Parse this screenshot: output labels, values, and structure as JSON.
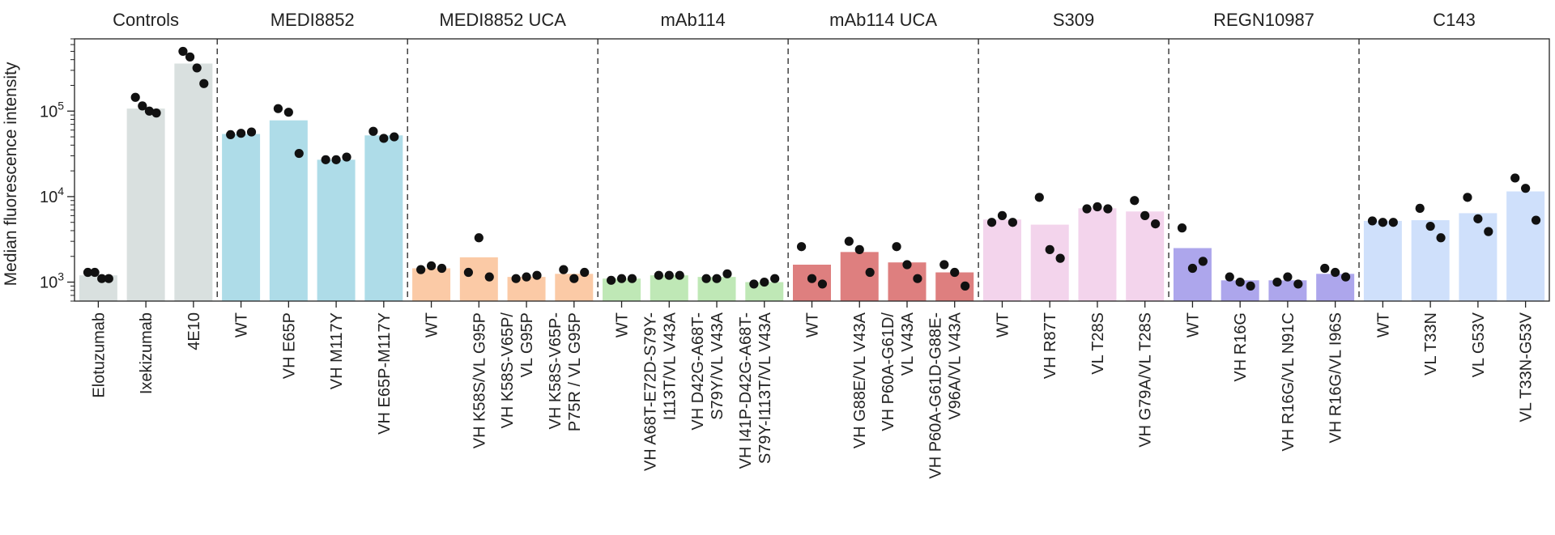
{
  "chart_data": {
    "type": "bar",
    "ylabel": "Median fluorescence intensity",
    "yscale": "log",
    "ylim": [
      600,
      700000
    ],
    "yticks": [
      {
        "value": 1000,
        "base": "10",
        "exp": "3"
      },
      {
        "value": 10000,
        "base": "10",
        "exp": "4"
      },
      {
        "value": 100000,
        "base": "10",
        "exp": "5"
      }
    ],
    "colors": {
      "Controls": "#d9e0df",
      "MEDI8852": "#aedce8",
      "MEDI8852 UCA": "#fbcaa6",
      "mAb114": "#bfe8b6",
      "mAb114 UCA": "#de7f7f",
      "S309": "#f3d4ec",
      "REGN10987": "#ada6ec",
      "C143": "#cfe0fb"
    },
    "groups": [
      {
        "name": "Controls",
        "bars": [
          {
            "label": [
              "Elotuzumab"
            ],
            "value": 1200,
            "points": [
              1300,
              1300,
              1100,
              1100
            ]
          },
          {
            "label": [
              "Ixekizumab"
            ],
            "value": 107000,
            "points": [
              145000,
              115000,
              100000,
              95000
            ]
          },
          {
            "label": [
              "4E10"
            ],
            "value": 360000,
            "points": [
              500000,
              430000,
              320000,
              210000
            ]
          }
        ]
      },
      {
        "name": "MEDI8852",
        "bars": [
          {
            "label": [
              "WT"
            ],
            "value": 54000,
            "points": [
              53000,
              55000,
              57000
            ]
          },
          {
            "label": [
              "VH E65P"
            ],
            "value": 78000,
            "points": [
              107000,
              97000,
              32000
            ]
          },
          {
            "label": [
              "VH M117Y"
            ],
            "value": 27000,
            "points": [
              27000,
              27000,
              29000
            ]
          },
          {
            "label": [
              "VH E65P-M117Y"
            ],
            "value": 52000,
            "points": [
              58000,
              48000,
              50000
            ]
          }
        ]
      },
      {
        "name": "MEDI8852 UCA",
        "bars": [
          {
            "label": [
              "WT"
            ],
            "value": 1450,
            "points": [
              1400,
              1550,
              1450
            ]
          },
          {
            "label": [
              "VH K58S/VL G95P"
            ],
            "value": 1950,
            "points": [
              1300,
              3300,
              1150
            ]
          },
          {
            "label": [
              "VH K58S-V65P/",
              "VL G95P"
            ],
            "value": 1150,
            "points": [
              1100,
              1150,
              1200
            ]
          },
          {
            "label": [
              "VH K58S-V65P-",
              "P75R / VL G95P"
            ],
            "value": 1250,
            "points": [
              1400,
              1100,
              1300
            ]
          }
        ]
      },
      {
        "name": "mAb114",
        "bars": [
          {
            "label": [
              "WT"
            ],
            "value": 1100,
            "points": [
              1050,
              1100,
              1100
            ]
          },
          {
            "label": [
              "VH A68T-E72D-S79Y-",
              "I113T/VL V43A"
            ],
            "value": 1200,
            "points": [
              1200,
              1200,
              1200
            ]
          },
          {
            "label": [
              "VH D42G-A68T-",
              "S79Y/VL V43A"
            ],
            "value": 1150,
            "points": [
              1100,
              1100,
              1250
            ]
          },
          {
            "label": [
              "VH  I41P-D42G-A68T-",
              "S79Y-I113T/VL V43A"
            ],
            "value": 1000,
            "points": [
              950,
              1000,
              1100
            ]
          }
        ]
      },
      {
        "name": "mAb114 UCA",
        "bars": [
          {
            "label": [
              "WT"
            ],
            "value": 1600,
            "points": [
              2600,
              1100,
              950
            ]
          },
          {
            "label": [
              "VH G88E/VL V43A"
            ],
            "value": 2250,
            "points": [
              3000,
              2400,
              1300
            ]
          },
          {
            "label": [
              "VH  P60A-G61D/",
              "VL V43A"
            ],
            "value": 1700,
            "points": [
              2600,
              1600,
              1100
            ]
          },
          {
            "label": [
              "VH  P60A-G61D-G88E-",
              "V96A/VL V43A"
            ],
            "value": 1300,
            "points": [
              1600,
              1300,
              900
            ]
          }
        ]
      },
      {
        "name": "S309",
        "bars": [
          {
            "label": [
              "WT"
            ],
            "value": 5400,
            "points": [
              5000,
              6000,
              5000
            ]
          },
          {
            "label": [
              "VH R87T"
            ],
            "value": 4700,
            "points": [
              9800,
              2400,
              1900
            ]
          },
          {
            "label": [
              "VL T28S"
            ],
            "value": 7300,
            "points": [
              7200,
              7600,
              7200
            ]
          },
          {
            "label": [
              "VH G79A/VL T28S"
            ],
            "value": 6700,
            "points": [
              9000,
              6000,
              4800
            ]
          }
        ]
      },
      {
        "name": "REGN10987",
        "bars": [
          {
            "label": [
              "WT"
            ],
            "value": 2500,
            "points": [
              4300,
              1450,
              1750
            ]
          },
          {
            "label": [
              "VH R16G"
            ],
            "value": 1050,
            "points": [
              1150,
              1000,
              900
            ]
          },
          {
            "label": [
              "VH R16G/VL N91C"
            ],
            "value": 1050,
            "points": [
              1000,
              1150,
              950
            ]
          },
          {
            "label": [
              "VH R16G/VL I96S"
            ],
            "value": 1250,
            "points": [
              1450,
              1300,
              1150
            ]
          }
        ]
      },
      {
        "name": "C143",
        "bars": [
          {
            "label": [
              "WT"
            ],
            "value": 5200,
            "points": [
              5200,
              5000,
              5000
            ]
          },
          {
            "label": [
              "VL T33N"
            ],
            "value": 5300,
            "points": [
              7300,
              4500,
              3300
            ]
          },
          {
            "label": [
              "VL G53V"
            ],
            "value": 6400,
            "points": [
              9800,
              5500,
              3900
            ]
          },
          {
            "label": [
              "VL T33N-G53V"
            ],
            "value": 11500,
            "points": [
              16500,
              12500,
              5300
            ]
          }
        ]
      }
    ]
  }
}
